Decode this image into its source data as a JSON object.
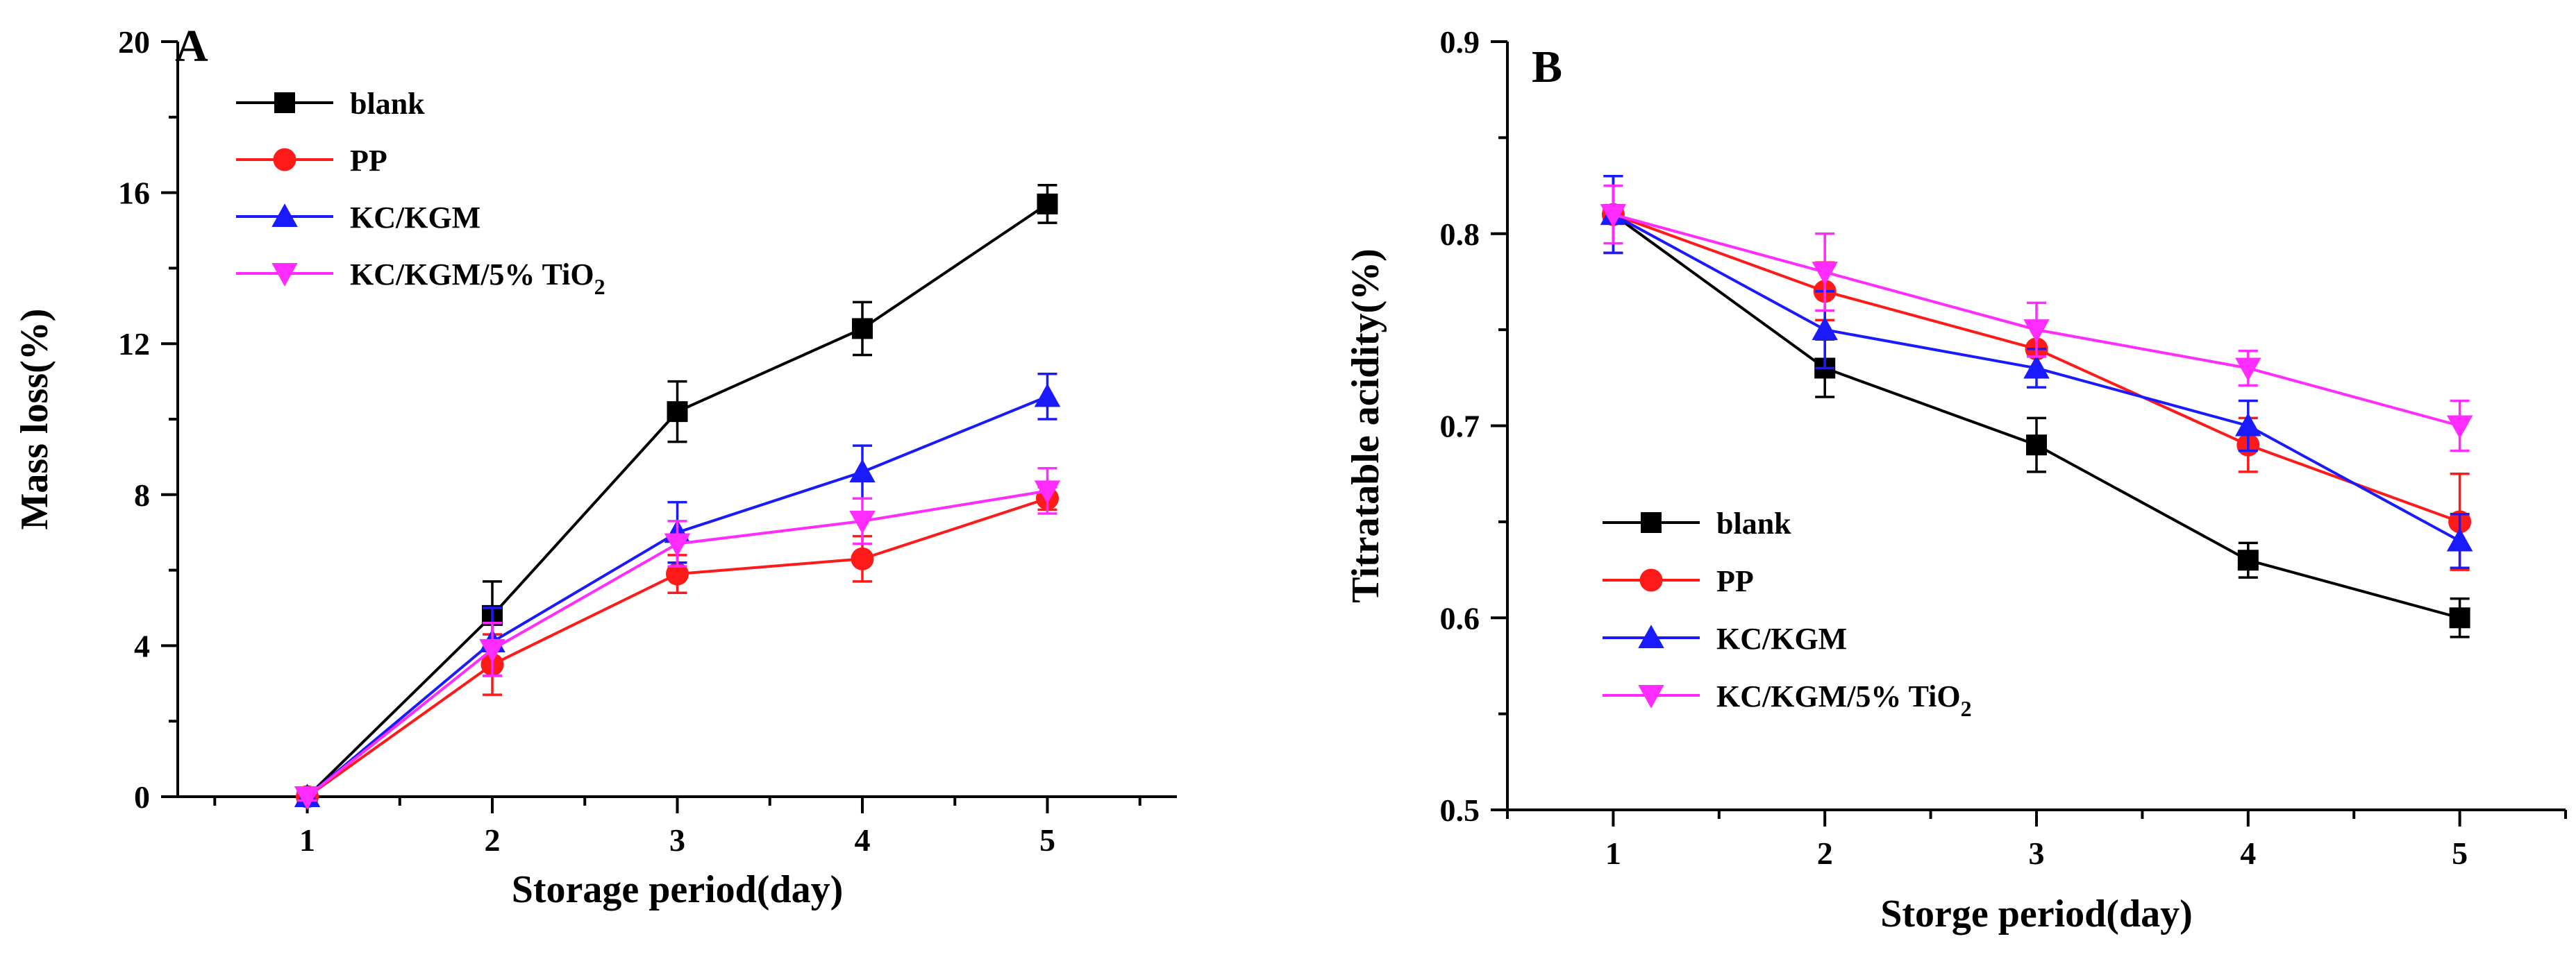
{
  "chart_data": [
    {
      "type": "line",
      "panel_label": "A",
      "title": "",
      "xlabel": "Storage period(day)",
      "ylabel": "Mass loss(%)",
      "x": [
        1,
        2,
        3,
        4,
        5
      ],
      "xlim": [
        0.3,
        5.7
      ],
      "ylim": [
        0,
        20
      ],
      "xticks": [
        "1",
        "2",
        "3",
        "4",
        "5"
      ],
      "yticks": [
        "0",
        "4",
        "8",
        "12",
        "16",
        "20"
      ],
      "ytick_values": [
        0,
        4,
        8,
        12,
        16,
        20
      ],
      "legend_position": "top-left",
      "grid": false,
      "series": [
        {
          "name": "blank",
          "sub": "",
          "color": "#000000",
          "marker": "square",
          "values": [
            0.0,
            4.8,
            10.2,
            12.4,
            15.7
          ],
          "errors": [
            0.1,
            0.9,
            0.8,
            0.7,
            0.5
          ]
        },
        {
          "name": "PP",
          "sub": "",
          "color": "#ff1a1a",
          "marker": "circle",
          "values": [
            0.0,
            3.5,
            5.9,
            6.3,
            7.9
          ],
          "errors": [
            0.1,
            0.8,
            0.5,
            0.6,
            0.3
          ]
        },
        {
          "name": "KC/KGM",
          "sub": "",
          "color": "#1a1aff",
          "marker": "triangle-up",
          "values": [
            0.0,
            4.1,
            7.0,
            8.6,
            10.6
          ],
          "errors": [
            0.1,
            0.9,
            0.8,
            0.7,
            0.6
          ]
        },
        {
          "name": "KC/KGM/5% TiO",
          "sub": "2",
          "color": "#ff2bff",
          "marker": "triangle-down",
          "values": [
            0.0,
            3.9,
            6.7,
            7.3,
            8.1
          ],
          "errors": [
            0.1,
            0.7,
            0.6,
            0.6,
            0.6
          ]
        }
      ]
    },
    {
      "type": "line",
      "panel_label": "B",
      "title": "",
      "xlabel": "Storge period(day)",
      "ylabel": "Titratable acidity(%)",
      "x": [
        1,
        2,
        3,
        4,
        5
      ],
      "xlim": [
        0.5,
        5.5
      ],
      "ylim": [
        0.5,
        0.9
      ],
      "xticks": [
        "1",
        "2",
        "3",
        "4",
        "5"
      ],
      "yticks": [
        "0.5",
        "0.6",
        "0.7",
        "0.8",
        "0.9"
      ],
      "ytick_values": [
        0.5,
        0.6,
        0.7,
        0.8,
        0.9
      ],
      "legend_position": "bottom-left",
      "grid": false,
      "series": [
        {
          "name": "blank",
          "sub": "",
          "color": "#000000",
          "marker": "square",
          "values": [
            0.81,
            0.73,
            0.69,
            0.63,
            0.6
          ],
          "errors": [
            0.02,
            0.015,
            0.014,
            0.009,
            0.01
          ]
        },
        {
          "name": "PP",
          "sub": "",
          "color": "#ff1a1a",
          "marker": "circle",
          "values": [
            0.81,
            0.77,
            0.74,
            0.69,
            0.65
          ],
          "errors": [
            0.02,
            0.015,
            0.013,
            0.014,
            0.025
          ]
        },
        {
          "name": "KC/KGM",
          "sub": "",
          "color": "#1a1aff",
          "marker": "triangle-up",
          "values": [
            0.81,
            0.75,
            0.73,
            0.7,
            0.64
          ],
          "errors": [
            0.02,
            0.02,
            0.01,
            0.013,
            0.014
          ]
        },
        {
          "name": "KC/KGM/5% TiO",
          "sub": "2",
          "color": "#ff2bff",
          "marker": "triangle-down",
          "values": [
            0.81,
            0.78,
            0.75,
            0.73,
            0.7
          ],
          "errors": [
            0.015,
            0.02,
            0.014,
            0.009,
            0.013
          ]
        }
      ]
    }
  ]
}
